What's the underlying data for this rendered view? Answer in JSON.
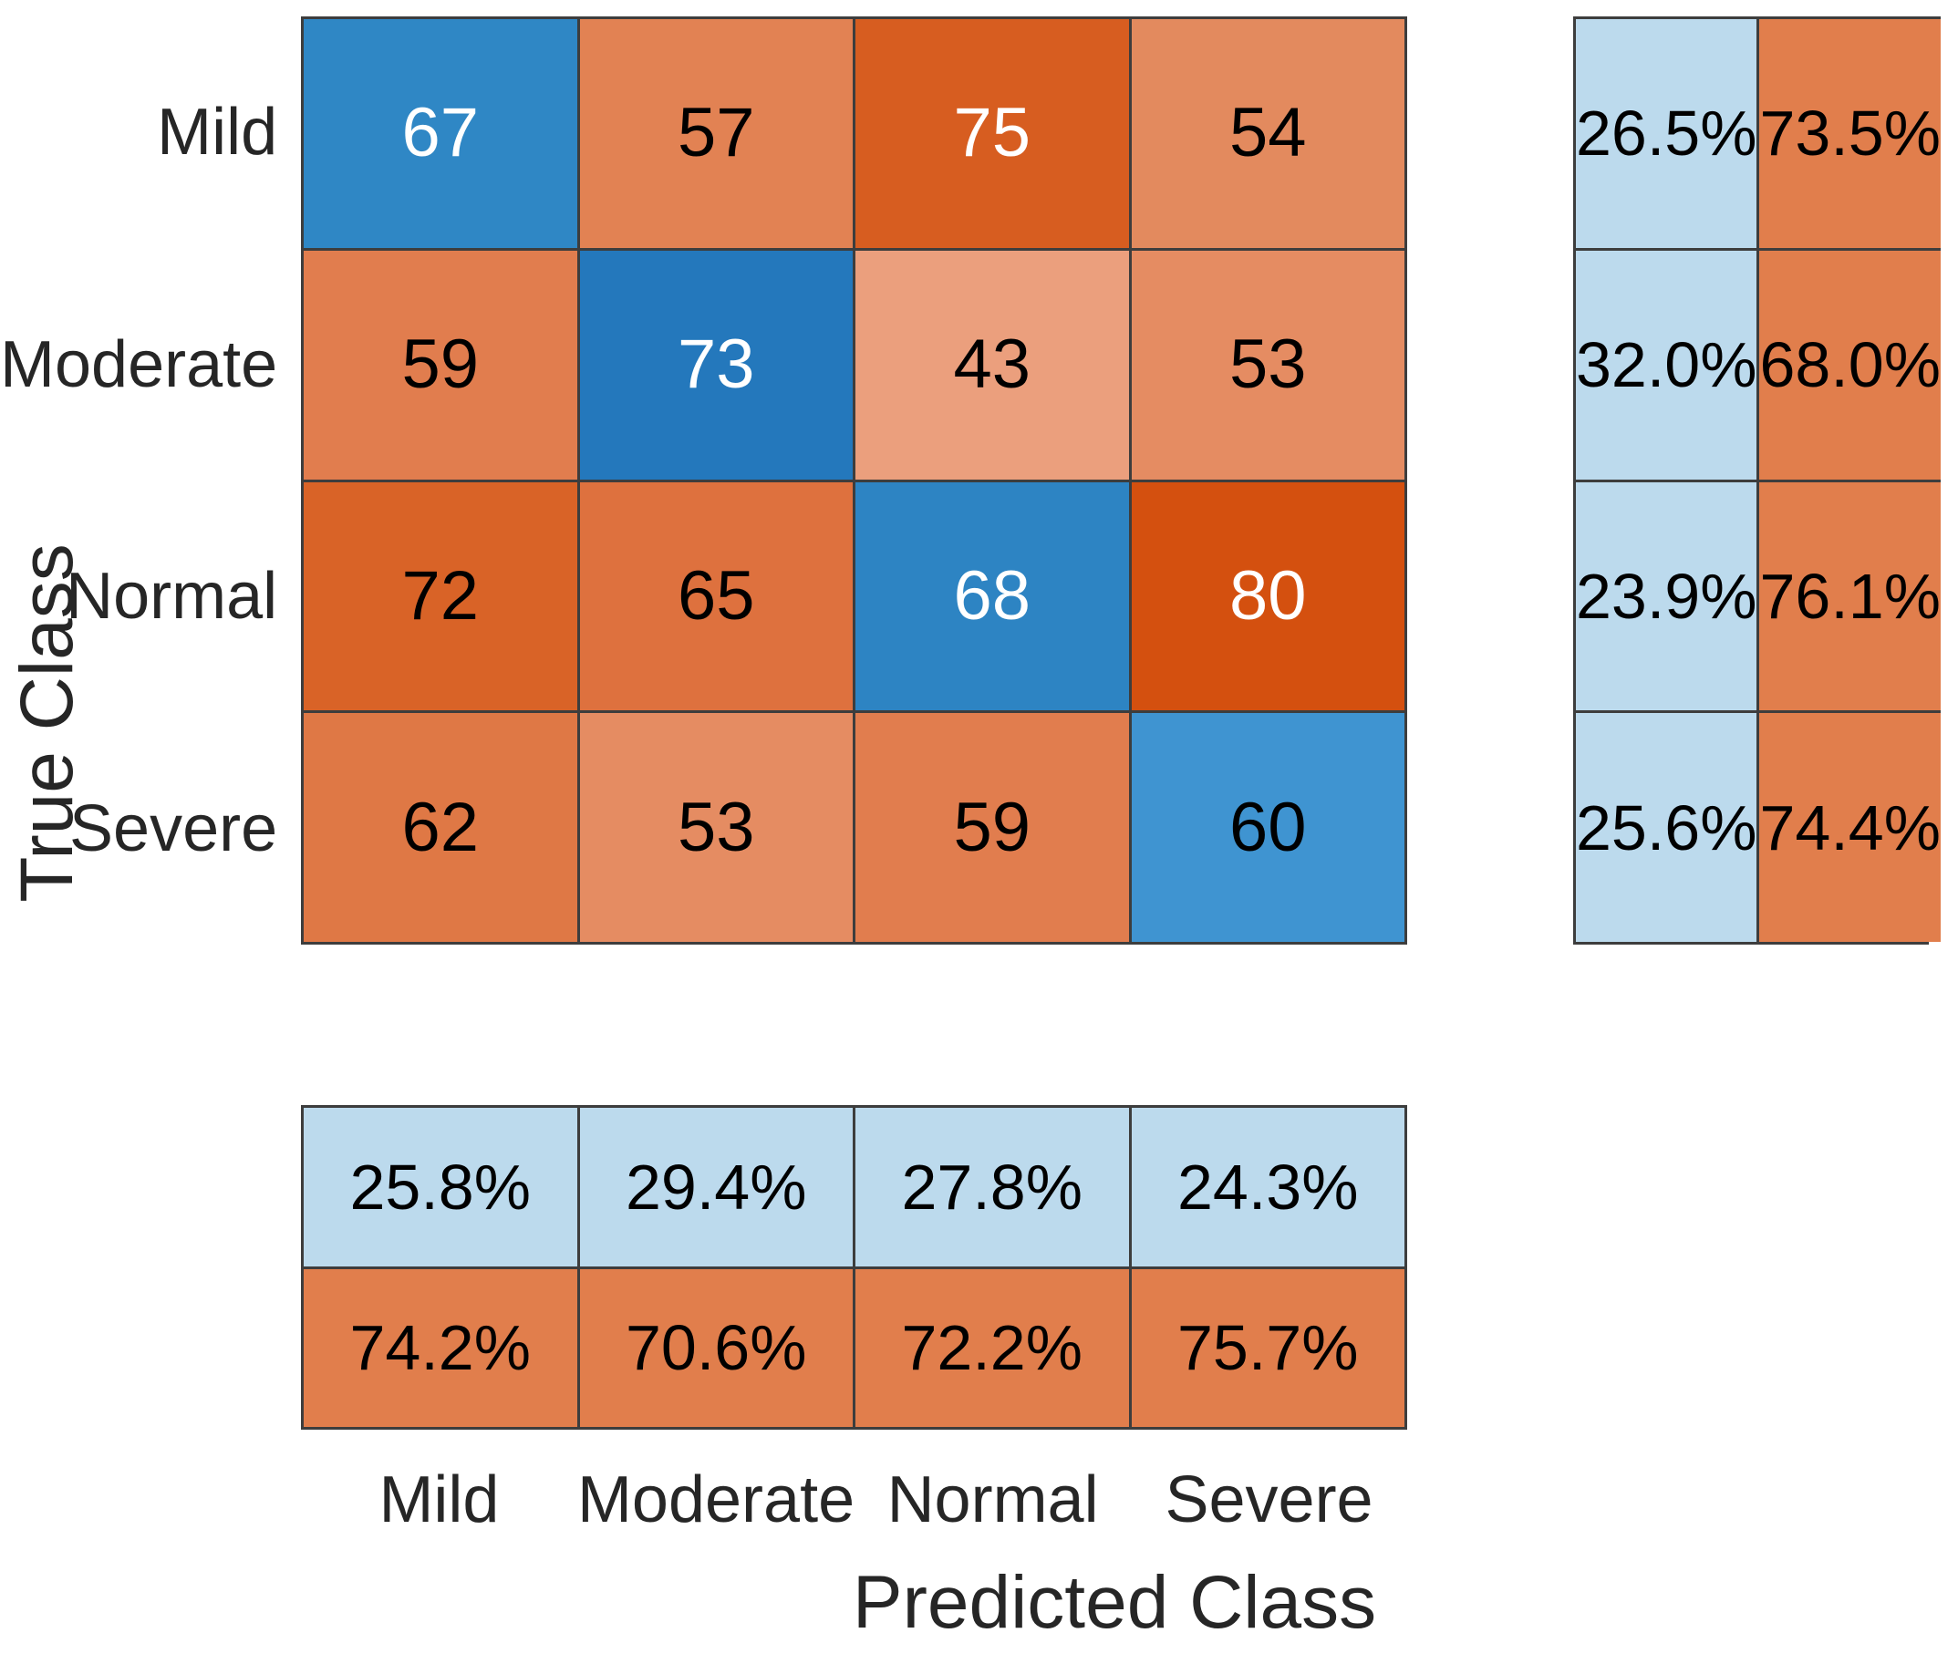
{
  "chart_data": {
    "type": "heatmap",
    "subtype": "confusion-matrix",
    "title": "",
    "xlabel": "Predicted Class",
    "ylabel": "True Class",
    "true_classes": [
      "Mild",
      "Moderate",
      "Normal",
      "Severe"
    ],
    "predicted_classes": [
      "Mild",
      "Moderate",
      "Normal",
      "Severe"
    ],
    "matrix": [
      [
        67,
        57,
        75,
        54
      ],
      [
        59,
        73,
        43,
        53
      ],
      [
        72,
        65,
        68,
        80
      ],
      [
        62,
        53,
        59,
        60
      ]
    ],
    "cell_bg_colors": [
      [
        "#2f87c5",
        "#e28253",
        "#d75d20",
        "#e38a5e"
      ],
      [
        "#e17d4e",
        "#2478bc",
        "#eb9f7d",
        "#e58c62"
      ],
      [
        "#d96327",
        "#de713e",
        "#2d84c3",
        "#d4500f"
      ],
      [
        "#df7845",
        "#e58c62",
        "#e17d4e",
        "#3f94d1"
      ]
    ],
    "cell_text_colors": [
      [
        "#ffffff",
        "#000000",
        "#ffffff",
        "#000000"
      ],
      [
        "#000000",
        "#ffffff",
        "#000000",
        "#000000"
      ],
      [
        "#000000",
        "#000000",
        "#ffffff",
        "#ffffff"
      ],
      [
        "#000000",
        "#000000",
        "#000000",
        "#000000"
      ]
    ],
    "row_summary": {
      "correct_percent": [
        "26.5%",
        "32.0%",
        "23.9%",
        "25.6%"
      ],
      "incorrect_percent": [
        "73.5%",
        "68.0%",
        "76.1%",
        "74.4%"
      ]
    },
    "col_summary": {
      "correct_percent": [
        "25.8%",
        "29.4%",
        "27.8%",
        "24.3%"
      ],
      "incorrect_percent": [
        "74.2%",
        "70.6%",
        "72.2%",
        "75.7%"
      ]
    },
    "colors": {
      "summary_blue": "#bcdaed",
      "summary_orange": "#e17e4c",
      "grid_line": "#3d3d3d",
      "background": "#ffffff",
      "diagonal_blue_max": "#2478bc",
      "diagonal_blue_min": "#3f94d1",
      "offdiagonal_orange_max": "#d4500f",
      "offdiagonal_orange_min": "#eb9f7d"
    },
    "layout": {
      "grid": "on",
      "legend": "none",
      "row_summary_position": "right",
      "col_summary_position": "bottom"
    }
  }
}
